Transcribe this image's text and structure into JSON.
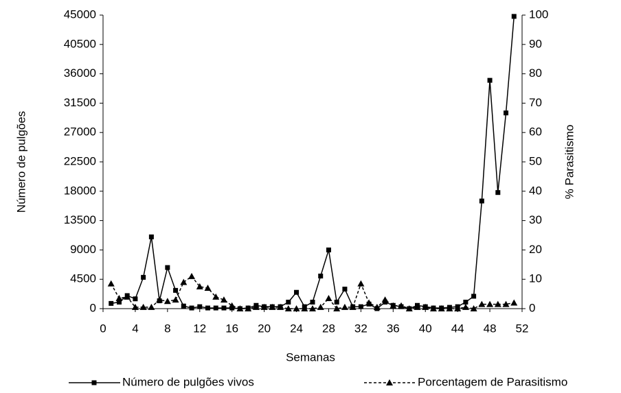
{
  "chart_data": {
    "type": "line",
    "xlabel": "Semanas",
    "ylabel": "Número de pulgões",
    "y2label": "% Parasitismo",
    "x": [
      1,
      2,
      3,
      4,
      5,
      6,
      7,
      8,
      9,
      10,
      11,
      12,
      13,
      14,
      15,
      16,
      17,
      18,
      19,
      20,
      21,
      22,
      23,
      24,
      25,
      26,
      27,
      28,
      29,
      30,
      31,
      32,
      33,
      34,
      35,
      36,
      37,
      38,
      39,
      40,
      41,
      42,
      43,
      44,
      45,
      46,
      47,
      48,
      49,
      50,
      51
    ],
    "xlim": [
      0,
      52
    ],
    "xticks": [
      0,
      4,
      8,
      12,
      16,
      20,
      24,
      28,
      32,
      36,
      40,
      44,
      48,
      52
    ],
    "ylim": [
      0,
      45000
    ],
    "yticks": [
      0,
      4500,
      9000,
      13500,
      18000,
      22500,
      27000,
      31500,
      36000,
      40500,
      45000
    ],
    "y2lim": [
      0,
      100
    ],
    "y2ticks": [
      0,
      10,
      20,
      30,
      40,
      50,
      60,
      70,
      80,
      90,
      100
    ],
    "series": [
      {
        "name": "Número de pulgões vivos",
        "color": "#000000",
        "marker": "square",
        "dashed": false,
        "values": [
          800,
          1000,
          2000,
          1500,
          4800,
          11000,
          1200,
          6300,
          2800,
          400,
          100,
          300,
          100,
          100,
          100,
          100,
          0,
          100,
          500,
          300,
          300,
          300,
          1000,
          2500,
          300,
          1000,
          5000,
          9000,
          1000,
          3000,
          300,
          300,
          700,
          0,
          1000,
          500,
          300,
          0,
          500,
          300,
          100,
          100,
          200,
          300,
          1000,
          1900,
          16500,
          35000,
          17800,
          30000,
          44800
        ]
      },
      {
        "name": "Porcentagem de Parasitismo",
        "color": "#000000",
        "marker": "triangle",
        "dashed": true,
        "axis": "y2",
        "values": [
          8.5,
          3.5,
          4,
          0.5,
          0.5,
          0.5,
          3,
          2.5,
          3,
          9,
          11,
          7.5,
          7,
          4,
          3,
          1,
          0,
          0,
          0.5,
          0.5,
          0.5,
          0.5,
          0,
          0,
          0,
          0,
          0.5,
          3.5,
          0,
          0.5,
          0.5,
          8.5,
          2,
          0.5,
          3,
          1,
          1,
          0,
          0.5,
          0.5,
          0,
          0,
          0,
          0,
          0.5,
          0,
          1.5,
          1.5,
          1.5,
          1.5,
          2
        ]
      }
    ]
  }
}
